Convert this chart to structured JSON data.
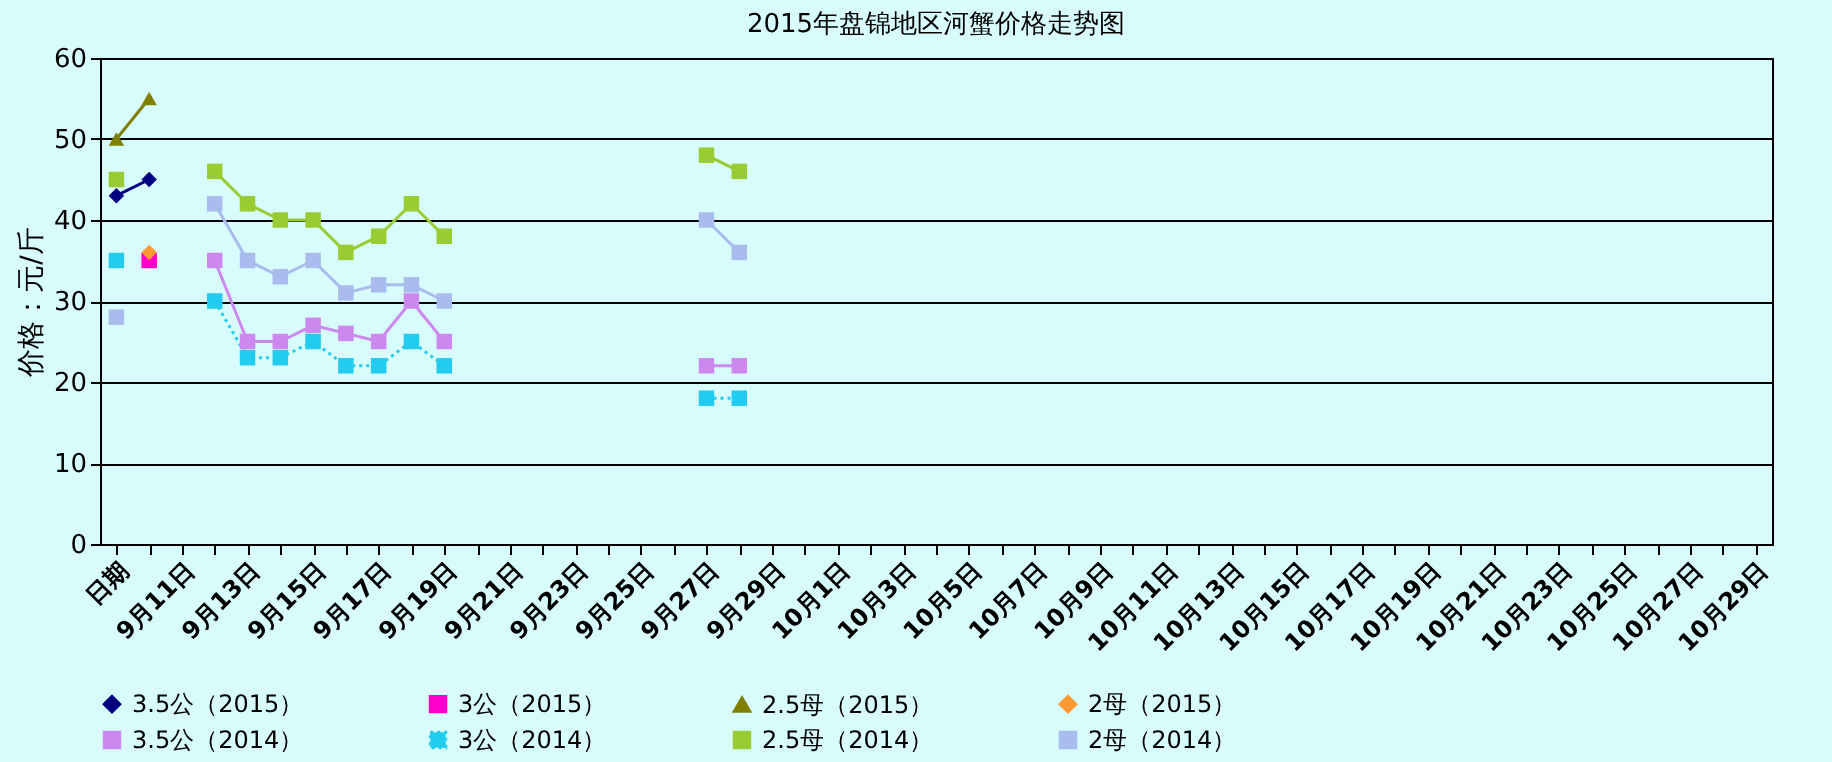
{
  "chart_data": {
    "type": "line",
    "title": "2015年盘锦地区河蟹价格走势图",
    "ylabel": "价格：元/斤",
    "categories": [
      "日期",
      null,
      "9月11日",
      null,
      "9月13日",
      null,
      "9月15日",
      null,
      "9月17日",
      null,
      "9月19日",
      null,
      "9月21日",
      null,
      "9月23日",
      null,
      "9月25日",
      null,
      "9月27日",
      null,
      "9月29日",
      null,
      "10月1日",
      null,
      "10月3日",
      null,
      "10月5日",
      null,
      "10月7日",
      null,
      "10月9日",
      null,
      "10月11日",
      null,
      "10月13日",
      null,
      "10月15日",
      null,
      "10月17日",
      null,
      "10月19日",
      null,
      "10月21日",
      null,
      "10月23日",
      null,
      "10月25日",
      null,
      "10月27日",
      null,
      "10月29日"
    ],
    "ylim": [
      0,
      60
    ],
    "yticks": [
      0,
      10,
      20,
      30,
      40,
      50,
      60
    ],
    "grid": "y",
    "legend": "bottom",
    "series": [
      {
        "name": "3.5公（2015）",
        "color": "#000080",
        "marker": "diamond",
        "values": [
          43,
          45,
          null,
          null,
          null,
          null,
          null,
          null,
          null,
          null,
          null,
          null,
          null,
          null,
          null,
          null,
          null,
          null,
          null,
          null,
          null,
          null,
          null,
          null,
          null,
          null,
          null,
          null,
          null,
          null,
          null,
          null,
          null,
          null,
          null,
          null,
          null,
          null,
          null,
          null,
          null,
          null,
          null,
          null,
          null,
          null,
          null,
          null,
          null,
          null,
          null
        ]
      },
      {
        "name": "3公（2015）",
        "color": "#ff00cc",
        "marker": "square",
        "values": [
          null,
          35,
          null,
          null,
          null,
          null,
          null,
          null,
          null,
          null,
          null,
          null,
          null,
          null,
          null,
          null,
          null,
          null,
          null,
          null,
          null,
          null,
          null,
          null,
          null,
          null,
          null,
          null,
          null,
          null,
          null,
          null,
          null,
          null,
          null,
          null,
          null,
          null,
          null,
          null,
          null,
          null,
          null,
          null,
          null,
          null,
          null,
          null,
          null,
          null,
          null
        ]
      },
      {
        "name": "2.5母（2015）",
        "color": "#808000",
        "marker": "triangle",
        "values": [
          50,
          55,
          null,
          null,
          null,
          null,
          null,
          null,
          null,
          null,
          null,
          null,
          null,
          null,
          null,
          null,
          null,
          null,
          null,
          null,
          null,
          null,
          null,
          null,
          null,
          null,
          null,
          null,
          null,
          null,
          null,
          null,
          null,
          null,
          null,
          null,
          null,
          null,
          null,
          null,
          null,
          null,
          null,
          null,
          null,
          null,
          null,
          null,
          null,
          null,
          null
        ]
      },
      {
        "name": "2母（2015）",
        "color": "#ff9933",
        "marker": "diamond",
        "values": [
          null,
          36,
          null,
          null,
          null,
          null,
          null,
          null,
          null,
          null,
          null,
          null,
          null,
          null,
          null,
          null,
          null,
          null,
          null,
          null,
          null,
          null,
          null,
          null,
          null,
          null,
          null,
          null,
          null,
          null,
          null,
          null,
          null,
          null,
          null,
          null,
          null,
          null,
          null,
          null,
          null,
          null,
          null,
          null,
          null,
          null,
          null,
          null,
          null,
          null,
          null
        ]
      },
      {
        "name": "3.5公（2014）",
        "color": "#cc88ee",
        "marker": "square",
        "values": [
          null,
          null,
          null,
          35,
          25,
          25,
          27,
          26,
          25,
          30,
          25,
          null,
          null,
          null,
          null,
          null,
          null,
          null,
          22,
          22,
          null,
          null,
          null,
          null,
          null,
          null,
          null,
          null,
          null,
          null,
          null,
          null,
          null,
          null,
          null,
          null,
          null,
          null,
          null,
          null,
          null,
          null,
          null,
          null,
          null,
          null,
          null,
          null,
          null,
          null,
          null
        ]
      },
      {
        "name": "3公（2014）",
        "color": "#22ccee",
        "marker": "square",
        "line_style": "dotted",
        "values": [
          35,
          null,
          null,
          30,
          23,
          23,
          25,
          22,
          22,
          25,
          22,
          null,
          null,
          null,
          null,
          null,
          null,
          null,
          18,
          18,
          null,
          null,
          null,
          null,
          null,
          null,
          null,
          null,
          null,
          null,
          null,
          null,
          null,
          null,
          null,
          null,
          null,
          null,
          null,
          null,
          null,
          null,
          null,
          null,
          null,
          null,
          null,
          null,
          null,
          null,
          null
        ]
      },
      {
        "name": "2.5母（2014）",
        "color": "#99cc33",
        "marker": "square",
        "values": [
          45,
          null,
          null,
          46,
          42,
          40,
          40,
          36,
          38,
          42,
          38,
          null,
          null,
          null,
          null,
          null,
          null,
          null,
          48,
          46,
          null,
          null,
          null,
          null,
          null,
          null,
          null,
          null,
          null,
          null,
          null,
          null,
          null,
          null,
          null,
          null,
          null,
          null,
          null,
          null,
          null,
          null,
          null,
          null,
          null,
          null,
          null,
          null,
          null,
          null,
          null
        ]
      },
      {
        "name": "2母（2014）",
        "color": "#aabbee",
        "marker": "square",
        "values": [
          28,
          null,
          null,
          42,
          35,
          33,
          35,
          31,
          32,
          32,
          30,
          null,
          null,
          null,
          null,
          null,
          null,
          null,
          40,
          36,
          null,
          null,
          null,
          null,
          null,
          null,
          null,
          null,
          null,
          null,
          null,
          null,
          null,
          null,
          null,
          null,
          null,
          null,
          null,
          null,
          null,
          null,
          null,
          null,
          null,
          null,
          null,
          null,
          null,
          null,
          null
        ]
      }
    ]
  }
}
